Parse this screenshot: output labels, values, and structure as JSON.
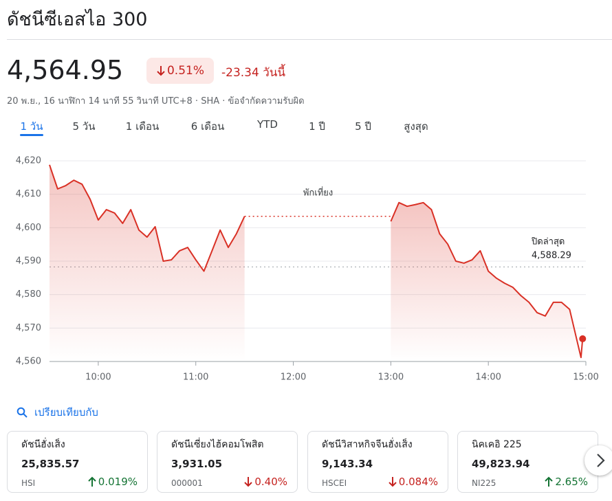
{
  "header": {
    "title": "ดัชนีซีเอสไอ 300"
  },
  "quote": {
    "price": "4,564.95",
    "change_percent": "0.51%",
    "change": "-23.34 วันนี้",
    "meta": "20 พ.ย., 16 นาฬิกา 14 นาที 55 วินาที UTC+8 · SHA · ข้อจำกัดความรับผิด"
  },
  "tabs": [
    "1 วัน",
    "5 วัน",
    "1 เดือน",
    "6 เดือน",
    "YTD",
    "1 ปี",
    "5 ปี",
    "สูงสุด"
  ],
  "chart_data": {
    "type": "line",
    "color": "#d93025",
    "x": [
      570,
      575,
      580,
      585,
      590,
      595,
      600,
      605,
      610,
      615,
      620,
      625,
      630,
      635,
      640,
      645,
      650,
      655,
      660,
      665,
      670,
      675,
      680,
      685,
      690,
      720,
      780,
      785,
      790,
      795,
      800,
      805,
      810,
      815,
      820,
      825,
      830,
      835,
      840,
      845,
      850,
      855,
      860,
      865,
      870,
      875,
      880,
      885,
      890,
      895,
      897,
      898
    ],
    "values": [
      4618.8,
      4611.6,
      4612.6,
      4614.2,
      4613,
      4608.5,
      4602.3,
      4605.4,
      4604.4,
      4601.3,
      4605.4,
      4599.3,
      4597.2,
      4600.3,
      4590,
      4590.4,
      4593.1,
      4594.1,
      4590.4,
      4587,
      4593.1,
      4599.3,
      4594.1,
      4598.2,
      4603.4,
      null,
      4601.9,
      4607.5,
      4606.4,
      4606.9,
      4607.5,
      4605.4,
      4598.2,
      4595.1,
      4590,
      4589.4,
      4590.4,
      4593.1,
      4587,
      4584.9,
      4583.4,
      4582.2,
      4579.7,
      4577.7,
      4574.6,
      4573.6,
      4577.7,
      4577.7,
      4575.6,
      4565.3,
      4561.2,
      4566.8
    ],
    "xlim": [
      570,
      900
    ],
    "xticks": [
      {
        "value": 600,
        "label": "10:00"
      },
      {
        "value": 660,
        "label": "11:00"
      },
      {
        "value": 720,
        "label": "12:00"
      },
      {
        "value": 780,
        "label": "13:00"
      },
      {
        "value": 840,
        "label": "14:00"
      },
      {
        "value": 900,
        "label": "15:00"
      }
    ],
    "ylim": [
      4560,
      4620
    ],
    "yticks": [
      {
        "value": 4560,
        "label": "4,560"
      },
      {
        "value": 4570,
        "label": "4,570"
      },
      {
        "value": 4580,
        "label": "4,580"
      },
      {
        "value": 4590,
        "label": "4,590"
      },
      {
        "value": 4600,
        "label": "4,600"
      },
      {
        "value": 4610,
        "label": "4,610"
      },
      {
        "value": 4620,
        "label": "4,620"
      }
    ],
    "grid": true,
    "annotation": "พักเที่ยง",
    "reference": {
      "label": "ปิดล่าสุด",
      "value": 4588.29,
      "value_label": "4,588.29"
    }
  },
  "compare": {
    "title": "เปรียบเทียบกับ",
    "cards": [
      {
        "name": "ดัชนีฮั่งเส็ง",
        "value": "25,835.57",
        "code": "HSI",
        "change": "0.019%",
        "direction": "up"
      },
      {
        "name": "ดัชนีเซี่ยงไฮ้คอมโพสิต",
        "value": "3,931.05",
        "code": "000001",
        "change": "0.40%",
        "direction": "down"
      },
      {
        "name": "ดัชนีวิสาหกิจจีนฮั่งเส็ง",
        "value": "9,143.34",
        "code": "HSCEI",
        "change": "0.084%",
        "direction": "down"
      },
      {
        "name": "นิคเคอิ 225",
        "value": "49,823.94",
        "code": "NI225",
        "change": "2.65%",
        "direction": "up"
      }
    ]
  }
}
